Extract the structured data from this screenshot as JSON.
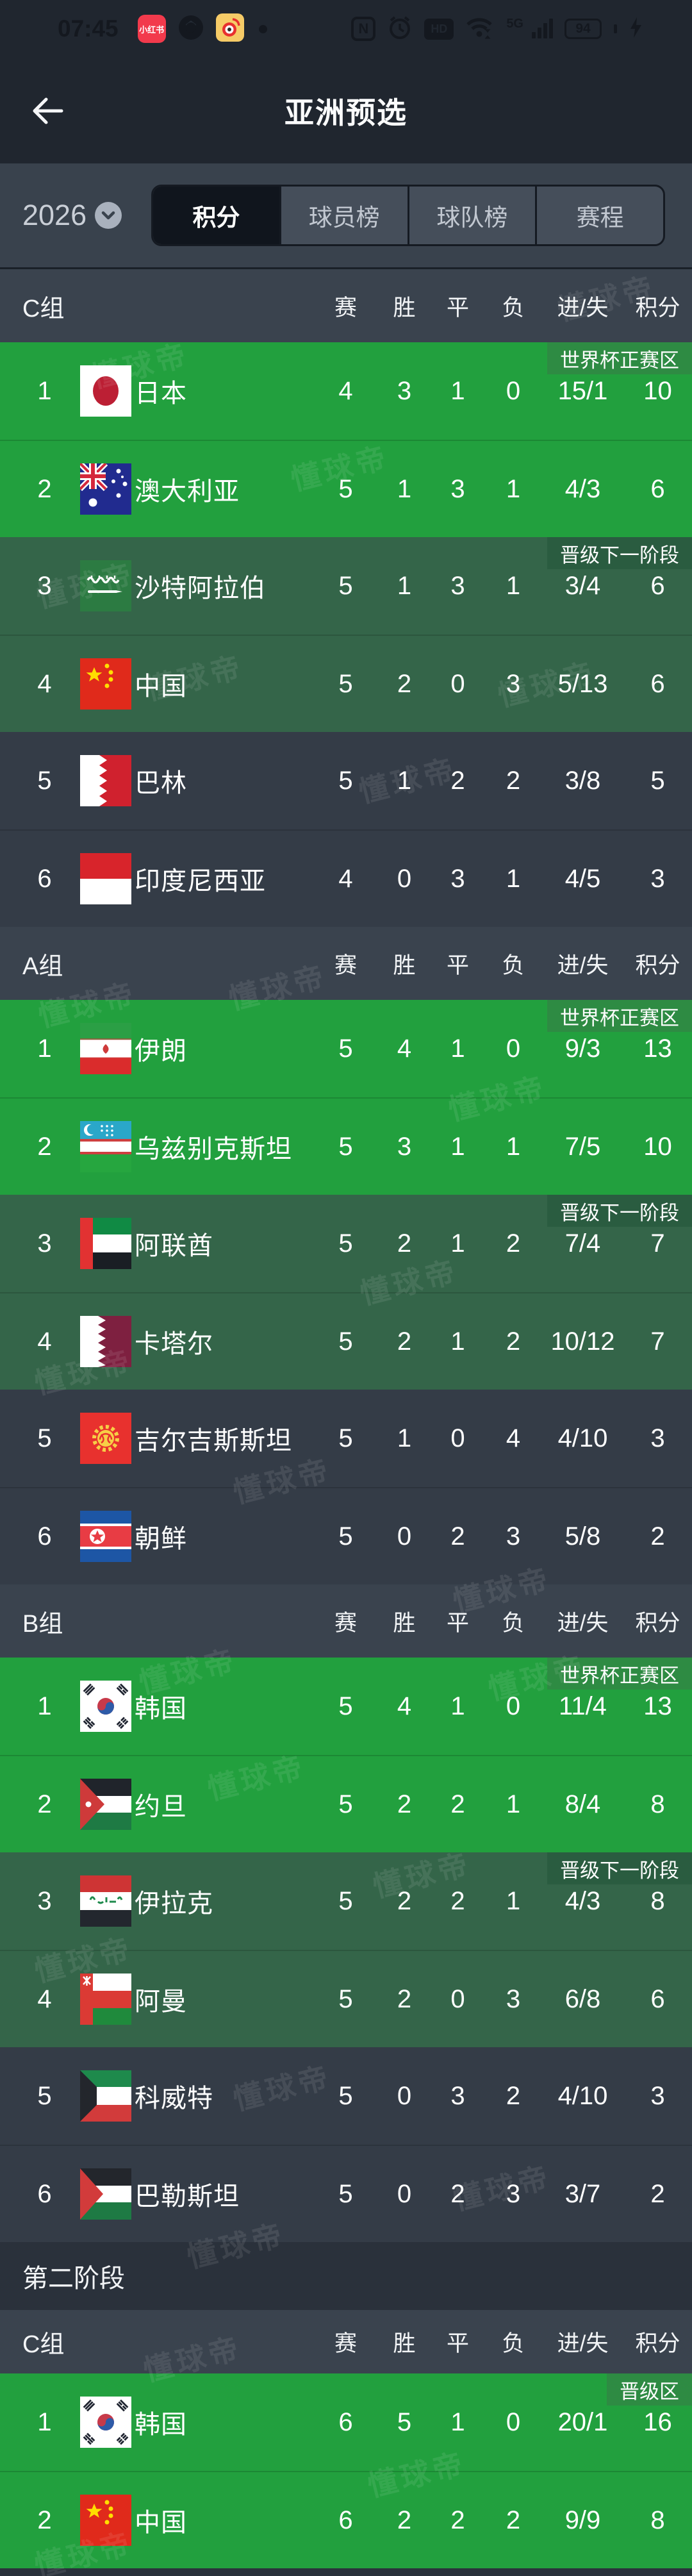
{
  "status_bar": {
    "time": "07:45",
    "battery_level": "94",
    "nfc_label": "N",
    "hd_label": "HD",
    "network_label": "5G",
    "xiaohongshu_label": "小红书"
  },
  "nav": {
    "title": "亚洲预选"
  },
  "filters": {
    "season": "2026",
    "tabs": [
      {
        "label": "积分",
        "active": true
      },
      {
        "label": "球员榜",
        "active": false
      },
      {
        "label": "球队榜",
        "active": false
      },
      {
        "label": "赛程",
        "active": false
      }
    ]
  },
  "columns": [
    "赛",
    "胜",
    "平",
    "负",
    "进/失",
    "积分"
  ],
  "watermark": "懂球帝",
  "colors": {
    "green": "#22A03E",
    "green-badge": "#2E8B43",
    "olive": "#346549",
    "olive-badge": "#2A5C40",
    "gray-row": "#343C47",
    "header-band": "#3A434E"
  },
  "stage1_groups": [
    {
      "name": "C组",
      "zones": [
        {
          "type": "world-cup",
          "badge": "世界杯正赛区",
          "rows": [
            {
              "rank": "1",
              "team": "日本",
              "flag": "japan",
              "played": "4",
              "won": "3",
              "drawn": "1",
              "lost": "0",
              "goals": "15/1",
              "points": "10"
            },
            {
              "rank": "2",
              "team": "澳大利亚",
              "flag": "australia",
              "played": "5",
              "won": "1",
              "drawn": "3",
              "lost": "1",
              "goals": "4/3",
              "points": "6"
            }
          ]
        },
        {
          "type": "advance",
          "badge": "晋级下一阶段",
          "rows": [
            {
              "rank": "3",
              "team": "沙特阿拉伯",
              "flag": "saudi-arabia",
              "played": "5",
              "won": "1",
              "drawn": "3",
              "lost": "1",
              "goals": "3/4",
              "points": "6"
            },
            {
              "rank": "4",
              "team": "中国",
              "flag": "china",
              "played": "5",
              "won": "2",
              "drawn": "0",
              "lost": "3",
              "goals": "5/13",
              "points": "6"
            }
          ]
        },
        {
          "type": "eliminated",
          "badge": "",
          "rows": [
            {
              "rank": "5",
              "team": "巴林",
              "flag": "bahrain",
              "played": "5",
              "won": "1",
              "drawn": "2",
              "lost": "2",
              "goals": "3/8",
              "points": "5"
            },
            {
              "rank": "6",
              "team": "印度尼西亚",
              "flag": "indonesia",
              "played": "4",
              "won": "0",
              "drawn": "3",
              "lost": "1",
              "goals": "4/5",
              "points": "3"
            }
          ]
        }
      ]
    },
    {
      "name": "A组",
      "zones": [
        {
          "type": "world-cup",
          "badge": "世界杯正赛区",
          "rows": [
            {
              "rank": "1",
              "team": "伊朗",
              "flag": "iran",
              "played": "5",
              "won": "4",
              "drawn": "1",
              "lost": "0",
              "goals": "9/3",
              "points": "13"
            },
            {
              "rank": "2",
              "team": "乌兹别克斯坦",
              "flag": "uzbekistan",
              "played": "5",
              "won": "3",
              "drawn": "1",
              "lost": "1",
              "goals": "7/5",
              "points": "10"
            }
          ]
        },
        {
          "type": "advance",
          "badge": "晋级下一阶段",
          "rows": [
            {
              "rank": "3",
              "team": "阿联酋",
              "flag": "uae",
              "played": "5",
              "won": "2",
              "drawn": "1",
              "lost": "2",
              "goals": "7/4",
              "points": "7"
            },
            {
              "rank": "4",
              "team": "卡塔尔",
              "flag": "qatar",
              "played": "5",
              "won": "2",
              "drawn": "1",
              "lost": "2",
              "goals": "10/12",
              "points": "7"
            }
          ]
        },
        {
          "type": "eliminated",
          "badge": "",
          "rows": [
            {
              "rank": "5",
              "team": "吉尔吉斯斯坦",
              "flag": "kyrgyzstan",
              "played": "5",
              "won": "1",
              "drawn": "0",
              "lost": "4",
              "goals": "4/10",
              "points": "3"
            },
            {
              "rank": "6",
              "team": "朝鲜",
              "flag": "north-korea",
              "played": "5",
              "won": "0",
              "drawn": "2",
              "lost": "3",
              "goals": "5/8",
              "points": "2"
            }
          ]
        }
      ]
    },
    {
      "name": "B组",
      "zones": [
        {
          "type": "world-cup",
          "badge": "世界杯正赛区",
          "rows": [
            {
              "rank": "1",
              "team": "韩国",
              "flag": "south-korea",
              "played": "5",
              "won": "4",
              "drawn": "1",
              "lost": "0",
              "goals": "11/4",
              "points": "13"
            },
            {
              "rank": "2",
              "team": "约旦",
              "flag": "jordan",
              "played": "5",
              "won": "2",
              "drawn": "2",
              "lost": "1",
              "goals": "8/4",
              "points": "8"
            }
          ]
        },
        {
          "type": "advance",
          "badge": "晋级下一阶段",
          "rows": [
            {
              "rank": "3",
              "team": "伊拉克",
              "flag": "iraq",
              "played": "5",
              "won": "2",
              "drawn": "2",
              "lost": "1",
              "goals": "4/3",
              "points": "8"
            },
            {
              "rank": "4",
              "team": "阿曼",
              "flag": "oman",
              "played": "5",
              "won": "2",
              "drawn": "0",
              "lost": "3",
              "goals": "6/8",
              "points": "6"
            }
          ]
        },
        {
          "type": "eliminated",
          "badge": "",
          "rows": [
            {
              "rank": "5",
              "team": "科威特",
              "flag": "kuwait",
              "played": "5",
              "won": "0",
              "drawn": "3",
              "lost": "2",
              "goals": "4/10",
              "points": "3"
            },
            {
              "rank": "6",
              "team": "巴勒斯坦",
              "flag": "palestine",
              "played": "5",
              "won": "0",
              "drawn": "2",
              "lost": "3",
              "goals": "3/7",
              "points": "2"
            }
          ]
        }
      ]
    }
  ],
  "stage2": {
    "label": "第二阶段",
    "groups": [
      {
        "name": "C组",
        "zones": [
          {
            "type": "promotion",
            "badge": "晋级区",
            "rows": [
              {
                "rank": "1",
                "team": "韩国",
                "flag": "south-korea",
                "played": "6",
                "won": "5",
                "drawn": "1",
                "lost": "0",
                "goals": "20/1",
                "points": "16"
              },
              {
                "rank": "2",
                "team": "中国",
                "flag": "china",
                "played": "6",
                "won": "2",
                "drawn": "2",
                "lost": "2",
                "goals": "9/9",
                "points": "8"
              }
            ]
          }
        ]
      }
    ]
  }
}
